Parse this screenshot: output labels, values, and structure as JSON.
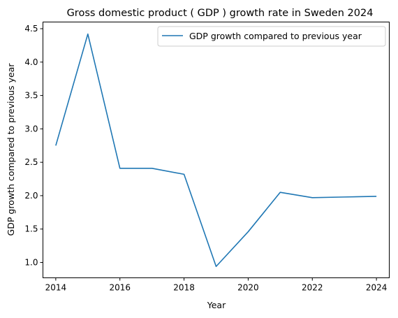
{
  "chart_data": {
    "type": "line",
    "title": "Gross domestic product ( GDP ) growth rate in Sweden 2024",
    "xlabel": "Year",
    "ylabel": "GDP growth compared to previous year",
    "xlim": [
      2013.6,
      2024.4
    ],
    "ylim": [
      0.77,
      4.6
    ],
    "xticks": [
      2014,
      2016,
      2018,
      2020,
      2022,
      2024
    ],
    "yticks": [
      1.0,
      1.5,
      2.0,
      2.5,
      3.0,
      3.5,
      4.0,
      4.5
    ],
    "grid": false,
    "legend_position": "top-right",
    "series": [
      {
        "name": "GDP growth compared to previous year",
        "color": "#1f77b4",
        "x": [
          2014,
          2015,
          2016,
          2017,
          2018,
          2019,
          2020,
          2021,
          2022,
          2023,
          2024
        ],
        "y": [
          2.75,
          4.42,
          2.41,
          2.41,
          2.32,
          0.94,
          1.46,
          2.05,
          1.97,
          1.98,
          1.99
        ]
      }
    ]
  }
}
